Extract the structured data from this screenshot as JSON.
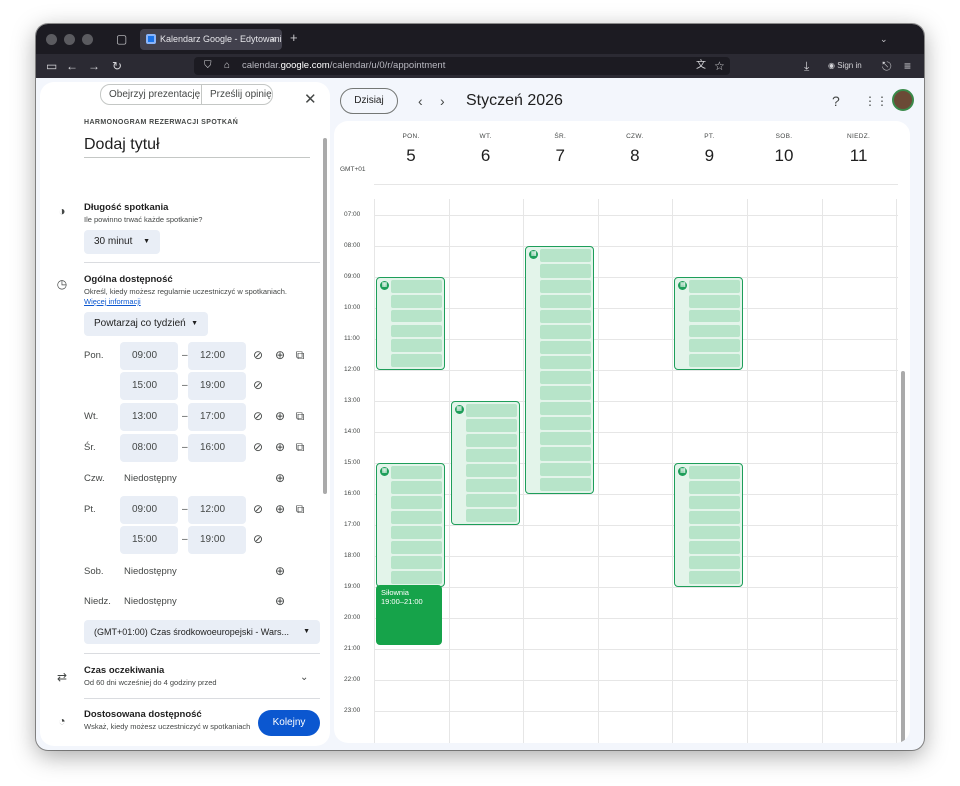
{
  "browser": {
    "tab_title": "Kalendarz Google - Edytowanie",
    "tab_close": "×",
    "new_tab": "+",
    "url_prefix": "calendar.",
    "url_domain": "google.com",
    "url_path": "/calendar/u/0/r/appointment",
    "sign_in": "Sign in"
  },
  "panel": {
    "btn_presentation": "Obejrzyj prezentację",
    "btn_feedback": "Prześlij opinię",
    "section_caption": "HARMONOGRAM REZERWACJI SPOTKAŃ",
    "title_placeholder": "Dodaj tytuł",
    "duration": {
      "heading": "Długość spotkania",
      "subtitle": "Ile powinno trwać każde spotkanie?",
      "value": "30 minut"
    },
    "availability": {
      "heading": "Ogólna dostępność",
      "subtitle": "Określ, kiedy możesz regularnie uczestniczyć w spotkaniach.",
      "link": "Więcej informacji",
      "repeat": "Powtarzaj co tydzień",
      "days": [
        {
          "day": "Pon.",
          "ranges": [
            [
              "09:00",
              "12:00"
            ],
            [
              "15:00",
              "19:00"
            ]
          ]
        },
        {
          "day": "Wt.",
          "ranges": [
            [
              "13:00",
              "17:00"
            ]
          ]
        },
        {
          "day": "Śr.",
          "ranges": [
            [
              "08:00",
              "16:00"
            ]
          ]
        },
        {
          "day": "Czw.",
          "unavailable": "Niedostępny"
        },
        {
          "day": "Pt.",
          "ranges": [
            [
              "09:00",
              "12:00"
            ],
            [
              "15:00",
              "19:00"
            ]
          ]
        },
        {
          "day": "Sob.",
          "unavailable": "Niedostępny"
        },
        {
          "day": "Niedz.",
          "unavailable": "Niedostępny"
        }
      ],
      "dash": "–",
      "timezone": "(GMT+01:00) Czas środkowoeuropejski - Wars..."
    },
    "wait": {
      "heading": "Czas oczekiwania",
      "subtitle": "Od 60 dni wcześniej do 4 godziny przed"
    },
    "custom": {
      "heading": "Dostosowana dostępność",
      "subtitle": "Wskaż, kiedy możesz uczestniczyć w spotkaniach"
    },
    "next": "Kolejny"
  },
  "header": {
    "today": "Dzisiaj",
    "month": "Styczeń 2026"
  },
  "calendar": {
    "tz": "GMT+01",
    "days": [
      {
        "name": "PON.",
        "num": "5"
      },
      {
        "name": "WT.",
        "num": "6"
      },
      {
        "name": "ŚR.",
        "num": "7"
      },
      {
        "name": "CZW.",
        "num": "8"
      },
      {
        "name": "PT.",
        "num": "9"
      },
      {
        "name": "SOB.",
        "num": "10"
      },
      {
        "name": "NIEDZ.",
        "num": "11"
      }
    ],
    "hours": [
      "07:00",
      "08:00",
      "09:00",
      "10:00",
      "11:00",
      "12:00",
      "13:00",
      "14:00",
      "15:00",
      "16:00",
      "17:00",
      "18:00",
      "19:00",
      "20:00",
      "21:00",
      "22:00",
      "23:00"
    ],
    "event": {
      "title": "Siłownia",
      "time": "19:00–21:00"
    }
  },
  "colors": {
    "slot_border": "#1e9e5a",
    "slot_fill": "#e3f4ea",
    "event": "#16a34a",
    "primary": "#0b57d0"
  }
}
